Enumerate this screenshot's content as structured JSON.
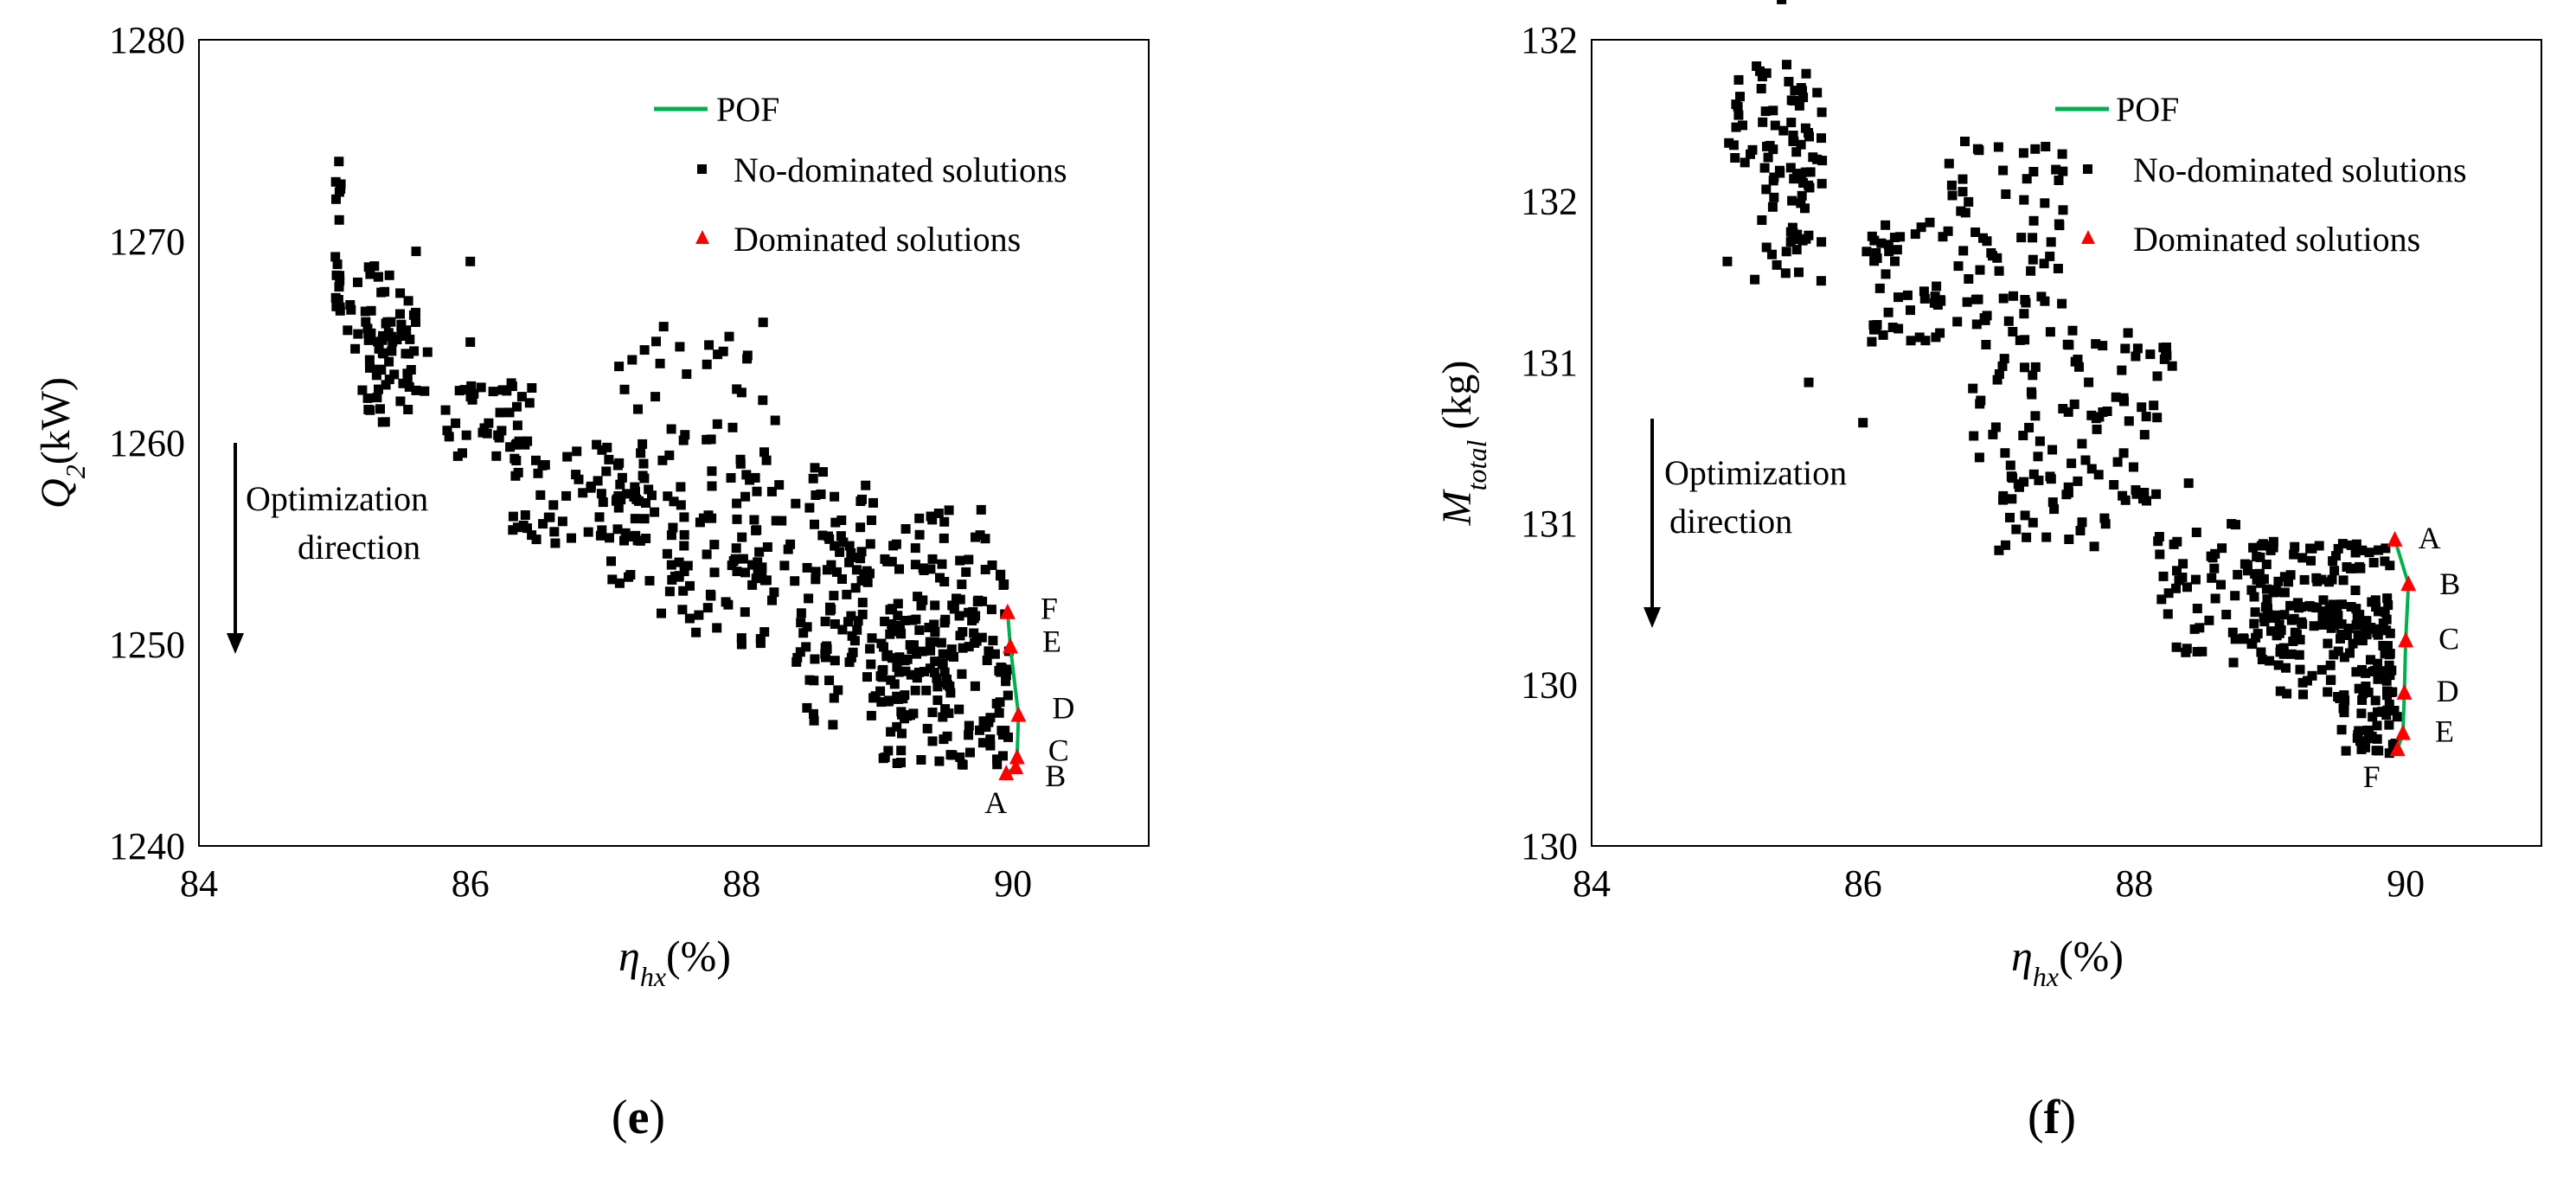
{
  "chart_data": [
    {
      "type": "scatter",
      "panel_label": "e",
      "ylabel_main": "Q",
      "ylabel_sub": "2",
      "ylabel_unit": "(kW)",
      "xlabel_main": "η",
      "xlabel_sub": "hx",
      "xlabel_unit": "(%)",
      "xlim": [
        84,
        91
      ],
      "ylim": [
        1240,
        1280
      ],
      "xticks": [
        "84",
        "86",
        "88",
        "90"
      ],
      "xtick_values": [
        84,
        86,
        88,
        90
      ],
      "yticks": [
        "1240",
        "1250",
        "1260",
        "1270",
        "1280"
      ],
      "ytick_values": [
        1240,
        1250,
        1260,
        1270,
        1280
      ],
      "legend": [
        "POF",
        "No-dominated solutions",
        "Dominated solutions"
      ],
      "annotation": [
        "Optimization",
        "direction"
      ],
      "pof": [
        [
          89.95,
          1243.6
        ],
        [
          90.02,
          1243.9
        ],
        [
          90.03,
          1244.4
        ],
        [
          90.04,
          1246.5
        ],
        [
          89.98,
          1249.9
        ],
        [
          89.96,
          1251.6
        ]
      ],
      "marked_points": [
        {
          "label": "A",
          "x": 89.95,
          "y": 1243.6
        },
        {
          "label": "B",
          "x": 90.02,
          "y": 1243.9
        },
        {
          "label": "C",
          "x": 90.03,
          "y": 1244.4
        },
        {
          "label": "D",
          "x": 90.04,
          "y": 1246.5
        },
        {
          "label": "E",
          "x": 89.98,
          "y": 1249.9
        },
        {
          "label": "F",
          "x": 89.96,
          "y": 1251.6
        }
      ],
      "clusters": [
        {
          "x": [
            85.0,
            85.05
          ],
          "y": [
            1265,
            1274
          ],
          "n": 16
        },
        {
          "x": [
            85.0,
            85.6
          ],
          "y": [
            1264,
            1269
          ],
          "n": 35
        },
        {
          "x": [
            85.2,
            85.7
          ],
          "y": [
            1261,
            1266
          ],
          "n": 45
        },
        {
          "x": [
            85.8,
            86.5
          ],
          "y": [
            1259,
            1263
          ],
          "n": 40
        },
        {
          "x": [
            86.3,
            87.3
          ],
          "y": [
            1255,
            1260
          ],
          "n": 60
        },
        {
          "x": [
            87.0,
            87.6
          ],
          "y": [
            1253,
            1258
          ],
          "n": 35
        },
        {
          "x": [
            87.0,
            88.3
          ],
          "y": [
            1256,
            1266
          ],
          "n": 55
        },
        {
          "x": [
            87.4,
            88.2
          ],
          "y": [
            1250,
            1255
          ],
          "n": 40
        },
        {
          "x": [
            88.0,
            89.0
          ],
          "y": [
            1252,
            1259
          ],
          "n": 50
        },
        {
          "x": [
            88.6,
            89.8
          ],
          "y": [
            1249,
            1257
          ],
          "n": 90
        },
        {
          "x": [
            88.4,
            89.6
          ],
          "y": [
            1246,
            1252
          ],
          "n": 70
        },
        {
          "x": [
            89.0,
            90.0
          ],
          "y": [
            1244,
            1250
          ],
          "n": 90
        },
        {
          "x": [
            89.3,
            89.95
          ],
          "y": [
            1250,
            1254
          ],
          "n": 30
        }
      ],
      "singles": [
        [
          86.0,
          1269
        ],
        [
          86.0,
          1265
        ],
        [
          85.6,
          1269.5
        ],
        [
          88.0,
          1262.5
        ],
        [
          88.0,
          1250
        ]
      ]
    },
    {
      "type": "scatter",
      "panel_label": "f",
      "ylabel_main": "M",
      "ylabel_sub": "total",
      "ylabel_unit": " (kg)",
      "xlabel_main": "η",
      "xlabel_sub": "hx",
      "xlabel_unit": "(%)",
      "xlim": [
        84,
        91
      ],
      "ylim": [
        130,
        132
      ],
      "xticks": [
        "84",
        "86",
        "88",
        "90"
      ],
      "xtick_values": [
        84,
        86,
        88,
        90
      ],
      "yticks": [
        "130",
        "130",
        "131",
        "131",
        "132",
        "132"
      ],
      "ytick_values": [
        130,
        130.4,
        130.8,
        131.2,
        131.6,
        132
      ],
      "legend": [
        "POF",
        "No-dominated solutions",
        "Dominated solutions"
      ],
      "annotation": [
        "Optimization",
        "direction"
      ],
      "pof": [
        [
          89.94,
          130.24
        ],
        [
          89.98,
          130.28
        ],
        [
          89.99,
          130.38
        ],
        [
          90.0,
          130.51
        ],
        [
          90.02,
          130.65
        ],
        [
          89.92,
          130.76
        ]
      ],
      "marked_points": [
        {
          "label": "A",
          "x": 89.92,
          "y": 130.76
        },
        {
          "label": "B",
          "x": 90.02,
          "y": 130.65
        },
        {
          "label": "C",
          "x": 90.0,
          "y": 130.51
        },
        {
          "label": "D",
          "x": 89.99,
          "y": 130.38
        },
        {
          "label": "E",
          "x": 89.98,
          "y": 130.28
        },
        {
          "label": "F",
          "x": 89.94,
          "y": 130.24
        }
      ],
      "clusters": [
        {
          "x": [
            85.0,
            85.7
          ],
          "y": [
            131.65,
            131.95
          ],
          "n": 60
        },
        {
          "x": [
            85.2,
            85.7
          ],
          "y": [
            131.4,
            131.7
          ],
          "n": 35
        },
        {
          "x": [
            86.0,
            86.6
          ],
          "y": [
            131.25,
            131.55
          ],
          "n": 45
        },
        {
          "x": [
            86.6,
            87.5
          ],
          "y": [
            131.3,
            131.75
          ],
          "n": 65
        },
        {
          "x": [
            86.8,
            87.6
          ],
          "y": [
            130.9,
            131.3
          ],
          "n": 40
        },
        {
          "x": [
            87.5,
            88.3
          ],
          "y": [
            130.85,
            131.3
          ],
          "n": 45
        },
        {
          "x": [
            87.0,
            88.2
          ],
          "y": [
            130.7,
            130.95
          ],
          "n": 40
        },
        {
          "x": [
            88.2,
            89.2
          ],
          "y": [
            130.45,
            130.8
          ],
          "n": 60
        },
        {
          "x": [
            88.8,
            89.9
          ],
          "y": [
            130.5,
            130.75
          ],
          "n": 100
        },
        {
          "x": [
            89.0,
            89.9
          ],
          "y": [
            130.35,
            130.6
          ],
          "n": 90
        },
        {
          "x": [
            89.5,
            89.95
          ],
          "y": [
            130.22,
            130.4
          ],
          "n": 40
        }
      ],
      "singles": [
        [
          85.4,
          132.1
        ],
        [
          85.6,
          131.15
        ],
        [
          86.0,
          131.05
        ],
        [
          85.0,
          131.45
        ],
        [
          88.4,
          130.9
        ]
      ]
    }
  ],
  "colors": {
    "pof": "#00b050",
    "non_dominated": "#000000",
    "dominated": "#ff0000"
  }
}
